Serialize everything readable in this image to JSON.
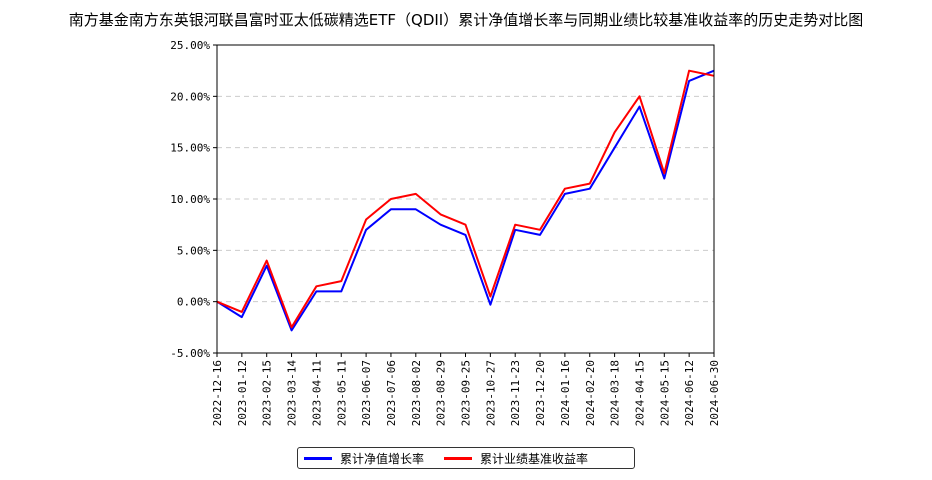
{
  "chart_data": {
    "type": "line",
    "title": "南方基金南方东英银河联昌富时亚太低碳精选ETF（QDII）累计净值增长率与同期业绩比较基准收益率的历史走势对比图",
    "xlabel": "",
    "ylabel": "",
    "ylim": [
      -5,
      25
    ],
    "y_ticks": [
      -5,
      0,
      5,
      10,
      15,
      20,
      25
    ],
    "y_tick_labels": [
      "-5.00%",
      "0.00%",
      "5.00%",
      "10.00%",
      "15.00%",
      "20.00%",
      "25.00%"
    ],
    "x_tick_labels": [
      "2022-12-16",
      "2023-01-12",
      "2023-02-15",
      "2023-03-14",
      "2023-04-11",
      "2023-05-11",
      "2023-06-07",
      "2023-07-06",
      "2023-08-02",
      "2023-08-29",
      "2023-09-25",
      "2023-10-27",
      "2023-11-23",
      "2023-12-20",
      "2024-01-16",
      "2024-02-20",
      "2024-03-18",
      "2024-04-15",
      "2024-05-15",
      "2024-06-12",
      "2024-06-30"
    ],
    "grid": "horizontal-dashed",
    "legend_position": "bottom-center",
    "x": [
      "2022-12-16",
      "2023-01-12",
      "2023-02-15",
      "2023-03-14",
      "2023-04-11",
      "2023-05-11",
      "2023-06-07",
      "2023-07-06",
      "2023-08-02",
      "2023-08-29",
      "2023-09-25",
      "2023-10-27",
      "2023-11-23",
      "2023-12-20",
      "2024-01-16",
      "2024-02-20",
      "2024-03-18",
      "2024-04-15",
      "2024-05-15",
      "2024-06-12",
      "2024-06-30"
    ],
    "series": [
      {
        "name": "累计净值增长率",
        "color": "#0000ff",
        "values": [
          0.0,
          -1.5,
          3.5,
          -2.8,
          1.0,
          1.0,
          7.0,
          9.0,
          9.0,
          7.5,
          6.5,
          -0.3,
          7.0,
          6.5,
          10.5,
          11.0,
          15.0,
          19.0,
          12.0,
          21.5,
          22.5
        ]
      },
      {
        "name": "累计业绩基准收益率",
        "color": "#ff0000",
        "values": [
          0.0,
          -1.0,
          4.0,
          -2.5,
          1.5,
          2.0,
          8.0,
          10.0,
          10.5,
          8.5,
          7.5,
          0.5,
          7.5,
          7.0,
          11.0,
          11.5,
          16.5,
          20.0,
          12.5,
          22.5,
          22.0
        ]
      }
    ]
  }
}
